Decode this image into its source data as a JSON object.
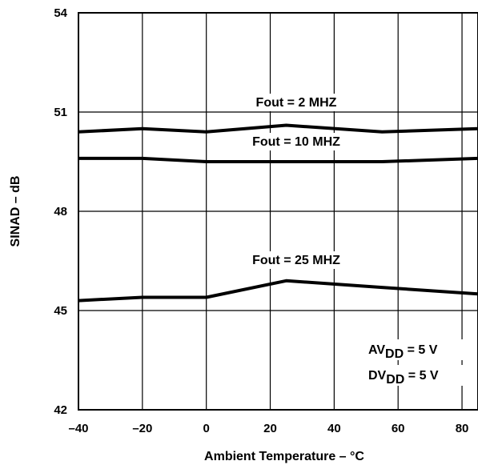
{
  "chart_data": {
    "type": "line",
    "xlabel": "Ambient Temperature – °C",
    "ylabel": "SINAD – dB",
    "xlim": [
      -40,
      85
    ],
    "ylim": [
      42,
      54
    ],
    "x_ticks": [
      "–40",
      "–20",
      "0",
      "20",
      "40",
      "60",
      "80"
    ],
    "x_tick_values": [
      -40,
      -20,
      0,
      20,
      40,
      60,
      80
    ],
    "y_ticks": [
      "42",
      "45",
      "48",
      "51",
      "54"
    ],
    "y_tick_values": [
      42,
      45,
      48,
      51,
      54
    ],
    "grid": true,
    "series": [
      {
        "name": "Fout = 2 MHZ",
        "x": [
          -40,
          -20,
          0,
          25,
          55,
          85
        ],
        "y": [
          50.4,
          50.5,
          50.4,
          50.6,
          50.4,
          50.5
        ]
      },
      {
        "name": "Fout = 10 MHZ",
        "x": [
          -40,
          -20,
          0,
          25,
          55,
          85
        ],
        "y": [
          49.6,
          49.6,
          49.5,
          49.5,
          49.5,
          49.6
        ]
      },
      {
        "name": "Fout = 25 MHZ",
        "x": [
          -40,
          -20,
          0,
          25,
          55,
          85
        ],
        "y": [
          45.3,
          45.4,
          45.4,
          45.9,
          45.7,
          45.5
        ]
      }
    ],
    "annotations": {
      "avdd": {
        "prefix": "AV",
        "sub": "DD",
        "suffix": " = 5 V"
      },
      "dvdd": {
        "prefix": "DV",
        "sub": "DD",
        "suffix": " = 5 V"
      }
    }
  }
}
